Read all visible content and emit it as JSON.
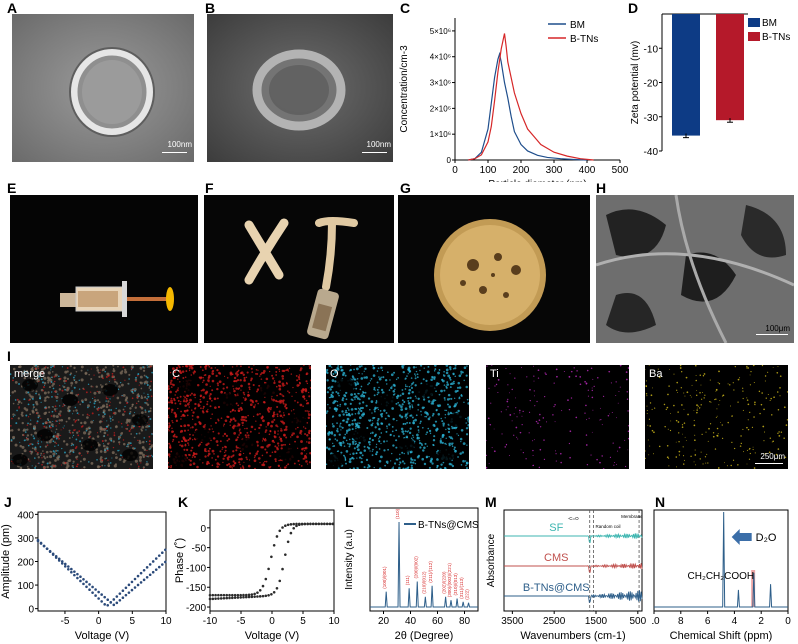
{
  "panel_labels": {
    "A": "A",
    "B": "B",
    "C": "C",
    "D": "D",
    "E": "E",
    "F": "F",
    "G": "G",
    "H": "H",
    "I": "I",
    "J": "J",
    "K": "K",
    "L": "L",
    "M": "M",
    "N": "N"
  },
  "scale_bars": {
    "a": "100nm",
    "b": "100nm",
    "h": "100μm",
    "i": "250μm"
  },
  "eds_labels": [
    "merge",
    "C",
    "O",
    "Ti",
    "Ba"
  ],
  "colors": {
    "bm": "#1f4e8c",
    "btns": "#d62728",
    "bm_bar": "#0d3b85",
    "btns_bar": "#b5192a",
    "sf": "#3cb5b0",
    "cms": "#c0504d",
    "bcms": "#2e5f8a",
    "tem_bg": "#8a8a8a",
    "eds_c": "#d61c1c",
    "eds_o": "#2bb5d8",
    "eds_ti": "#c02bc0",
    "eds_ba": "#d8c01c"
  },
  "chart_data": [
    {
      "id": "C",
      "type": "line",
      "xlabel": "Particle diameter (nm)",
      "ylabel": "Concentration/cm-3",
      "xlim": [
        0,
        500
      ],
      "ylim": [
        0,
        5500000
      ],
      "xticks": [
        "0",
        "100",
        "200",
        "300",
        "400",
        "500"
      ],
      "yticks": [
        "0",
        "1×10⁶",
        "2×10⁶",
        "3×10⁶",
        "4×10⁶",
        "5×10⁶"
      ],
      "ytick_values": [
        0,
        1000000,
        2000000,
        3000000,
        4000000,
        5000000
      ],
      "legend": "top-right",
      "series": [
        {
          "name": "BM",
          "x": [
            40,
            60,
            80,
            100,
            110,
            120,
            130,
            135,
            140,
            145,
            150,
            160,
            170,
            180,
            200,
            220,
            250,
            280,
            320,
            360,
            400
          ],
          "y": [
            0,
            50000,
            300000,
            1200000,
            2200000,
            3200000,
            3900000,
            4100000,
            3800000,
            3400000,
            3000000,
            2400000,
            1700000,
            1100000,
            600000,
            350000,
            180000,
            100000,
            50000,
            20000,
            0
          ]
        },
        {
          "name": "B-TNs",
          "x": [
            40,
            60,
            80,
            100,
            110,
            120,
            130,
            140,
            145,
            150,
            155,
            160,
            170,
            180,
            200,
            220,
            240,
            260,
            300,
            340,
            380,
            420
          ],
          "y": [
            0,
            50000,
            200000,
            700000,
            1300000,
            2300000,
            3400000,
            4300000,
            4600000,
            4900000,
            4400000,
            3800000,
            3200000,
            2600000,
            1800000,
            1200000,
            900000,
            600000,
            300000,
            150000,
            50000,
            0
          ]
        }
      ]
    },
    {
      "id": "D",
      "type": "bar",
      "ylabel": "Zeta potential (mv)",
      "ylim": [
        -40,
        0
      ],
      "yticks": [
        "-40",
        "-30",
        "-20",
        "-10"
      ],
      "ytick_values": [
        -40,
        -30,
        -20,
        -10
      ],
      "legend": "top-right",
      "categories": [
        "BM",
        "B-TNs"
      ],
      "values": [
        -35.5,
        -31
      ],
      "errors": [
        0.6,
        0.6
      ],
      "series_names": [
        "BM",
        "B-TNs"
      ]
    },
    {
      "id": "J",
      "type": "scatter",
      "xlabel": "Voltage (V)",
      "ylabel": "Amplitude (pm)",
      "xlim": [
        -9,
        10
      ],
      "ylim": [
        -10,
        410
      ],
      "xticks": [
        "-5",
        "0",
        "5",
        "10"
      ],
      "xtick_values": [
        -5,
        0,
        5,
        10
      ],
      "yticks": [
        "0",
        "100",
        "200",
        "300",
        "400"
      ],
      "ytick_values": [
        0,
        100,
        200,
        300,
        400
      ]
    },
    {
      "id": "K",
      "type": "scatter",
      "xlabel": "Voltage (V)",
      "ylabel": "Phase (˚)",
      "xlim": [
        -10,
        10
      ],
      "ylim": [
        -210,
        45
      ],
      "xticks": [
        "-10",
        "-5",
        "0",
        "5",
        "10"
      ],
      "xtick_values": [
        -10,
        -5,
        0,
        5,
        10
      ],
      "yticks": [
        "-200",
        "-150",
        "-100",
        "-50",
        "0"
      ],
      "ytick_values": [
        -200,
        -150,
        -100,
        -50,
        0
      ]
    },
    {
      "id": "L",
      "type": "line",
      "xlabel": "2θ (Degree)",
      "ylabel": "Intensity (a.u)",
      "xlim": [
        10,
        90
      ],
      "xticks": [
        "20",
        "40",
        "60",
        "80"
      ],
      "xtick_values": [
        20,
        40,
        60,
        80
      ],
      "legend": "top-right",
      "series_name": "B-TNs@CMS",
      "peaks": [
        {
          "x": 22,
          "h": 0.18,
          "label": "(100)/(001)"
        },
        {
          "x": 31.5,
          "h": 1.0,
          "label": "(110)"
        },
        {
          "x": 39,
          "h": 0.22,
          "label": "(111)"
        },
        {
          "x": 45,
          "h": 0.3,
          "label": "(200)/(002)"
        },
        {
          "x": 51,
          "h": 0.12,
          "label": "(210)/(012)"
        },
        {
          "x": 56,
          "h": 0.25,
          "label": "(211)/(112)"
        },
        {
          "x": 66,
          "h": 0.12,
          "label": "(202)/(220)"
        },
        {
          "x": 70,
          "h": 0.08,
          "label": "(300)/(003)/(221)"
        },
        {
          "x": 74.5,
          "h": 0.1,
          "label": "(310)/(013)"
        },
        {
          "x": 79,
          "h": 0.06,
          "label": "(311)/(113)"
        },
        {
          "x": 83,
          "h": 0.05,
          "label": "(222)"
        }
      ]
    },
    {
      "id": "M",
      "type": "line",
      "xlabel": "Wavenumbers (cm-1)",
      "ylabel": "Absorbance",
      "xlim": [
        3700,
        400
      ],
      "xticks": [
        "3500",
        "2500",
        "1500",
        "500"
      ],
      "xtick_values": [
        3500,
        2500,
        1500,
        500
      ],
      "annotations": [
        "-C=O",
        "Random coil",
        "Membrane"
      ],
      "series": [
        {
          "name": "SF"
        },
        {
          "name": "CMS"
        },
        {
          "name": "B-TNs@CMS"
        }
      ]
    },
    {
      "id": "N",
      "type": "line",
      "xlabel": "Chemical Shift (ppm)",
      "xlim": [
        10,
        0
      ],
      "xticks": [
        "10",
        "8",
        "6",
        "4",
        "2",
        "0"
      ],
      "xtick_values": [
        10,
        8,
        6,
        4,
        2,
        0
      ],
      "annotations": [
        "D₂O",
        "CH₂CH₂COOH"
      ]
    }
  ]
}
